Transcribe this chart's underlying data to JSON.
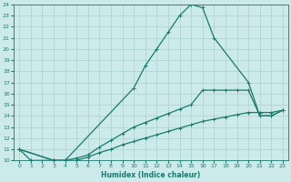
{
  "xlabel": "Humidex (Indice chaleur)",
  "color": "#1a7a6e",
  "bg_color": "#cceaea",
  "grid_color": "#aacfcf",
  "ylim": [
    10,
    24
  ],
  "xlim": [
    -0.5,
    23.5
  ],
  "yticks": [
    10,
    11,
    12,
    13,
    14,
    15,
    16,
    17,
    18,
    19,
    20,
    21,
    22,
    23,
    24
  ],
  "xticks": [
    0,
    1,
    2,
    3,
    4,
    5,
    6,
    7,
    8,
    9,
    10,
    11,
    12,
    13,
    14,
    15,
    16,
    17,
    18,
    19,
    20,
    21,
    22,
    23
  ],
  "line1_x": [
    0,
    1,
    3,
    4,
    10,
    11,
    12,
    13,
    14,
    15,
    16,
    17,
    20,
    21,
    22,
    23
  ],
  "line1_y": [
    11,
    10,
    10,
    10,
    16.5,
    18.5,
    20,
    21.5,
    23,
    24,
    23.7,
    21,
    17,
    14,
    14,
    14.5
  ],
  "line2_x": [
    0,
    3,
    4,
    5,
    6,
    7,
    8,
    9,
    10,
    11,
    12,
    13,
    14,
    15,
    16,
    17,
    18,
    19,
    20,
    21,
    22,
    23
  ],
  "line2_y": [
    11,
    10,
    10,
    10.2,
    10.5,
    11.2,
    11.8,
    12.4,
    13.0,
    13.4,
    13.8,
    14.2,
    14.6,
    15.0,
    16.3,
    16.3,
    16.3,
    16.3,
    16.3,
    14,
    14,
    14.5
  ],
  "line3_x": [
    0,
    3,
    4,
    5,
    6,
    7,
    8,
    9,
    10,
    11,
    12,
    13,
    14,
    15,
    16,
    17,
    18,
    19,
    20,
    21,
    22,
    23
  ],
  "line3_y": [
    11,
    10,
    10,
    10.0,
    10.3,
    10.7,
    11.0,
    11.4,
    11.7,
    12.0,
    12.3,
    12.6,
    12.9,
    13.2,
    13.5,
    13.7,
    13.9,
    14.1,
    14.3,
    14.3,
    14.3,
    14.5
  ],
  "line_width": 0.9,
  "marker_size": 2.5
}
